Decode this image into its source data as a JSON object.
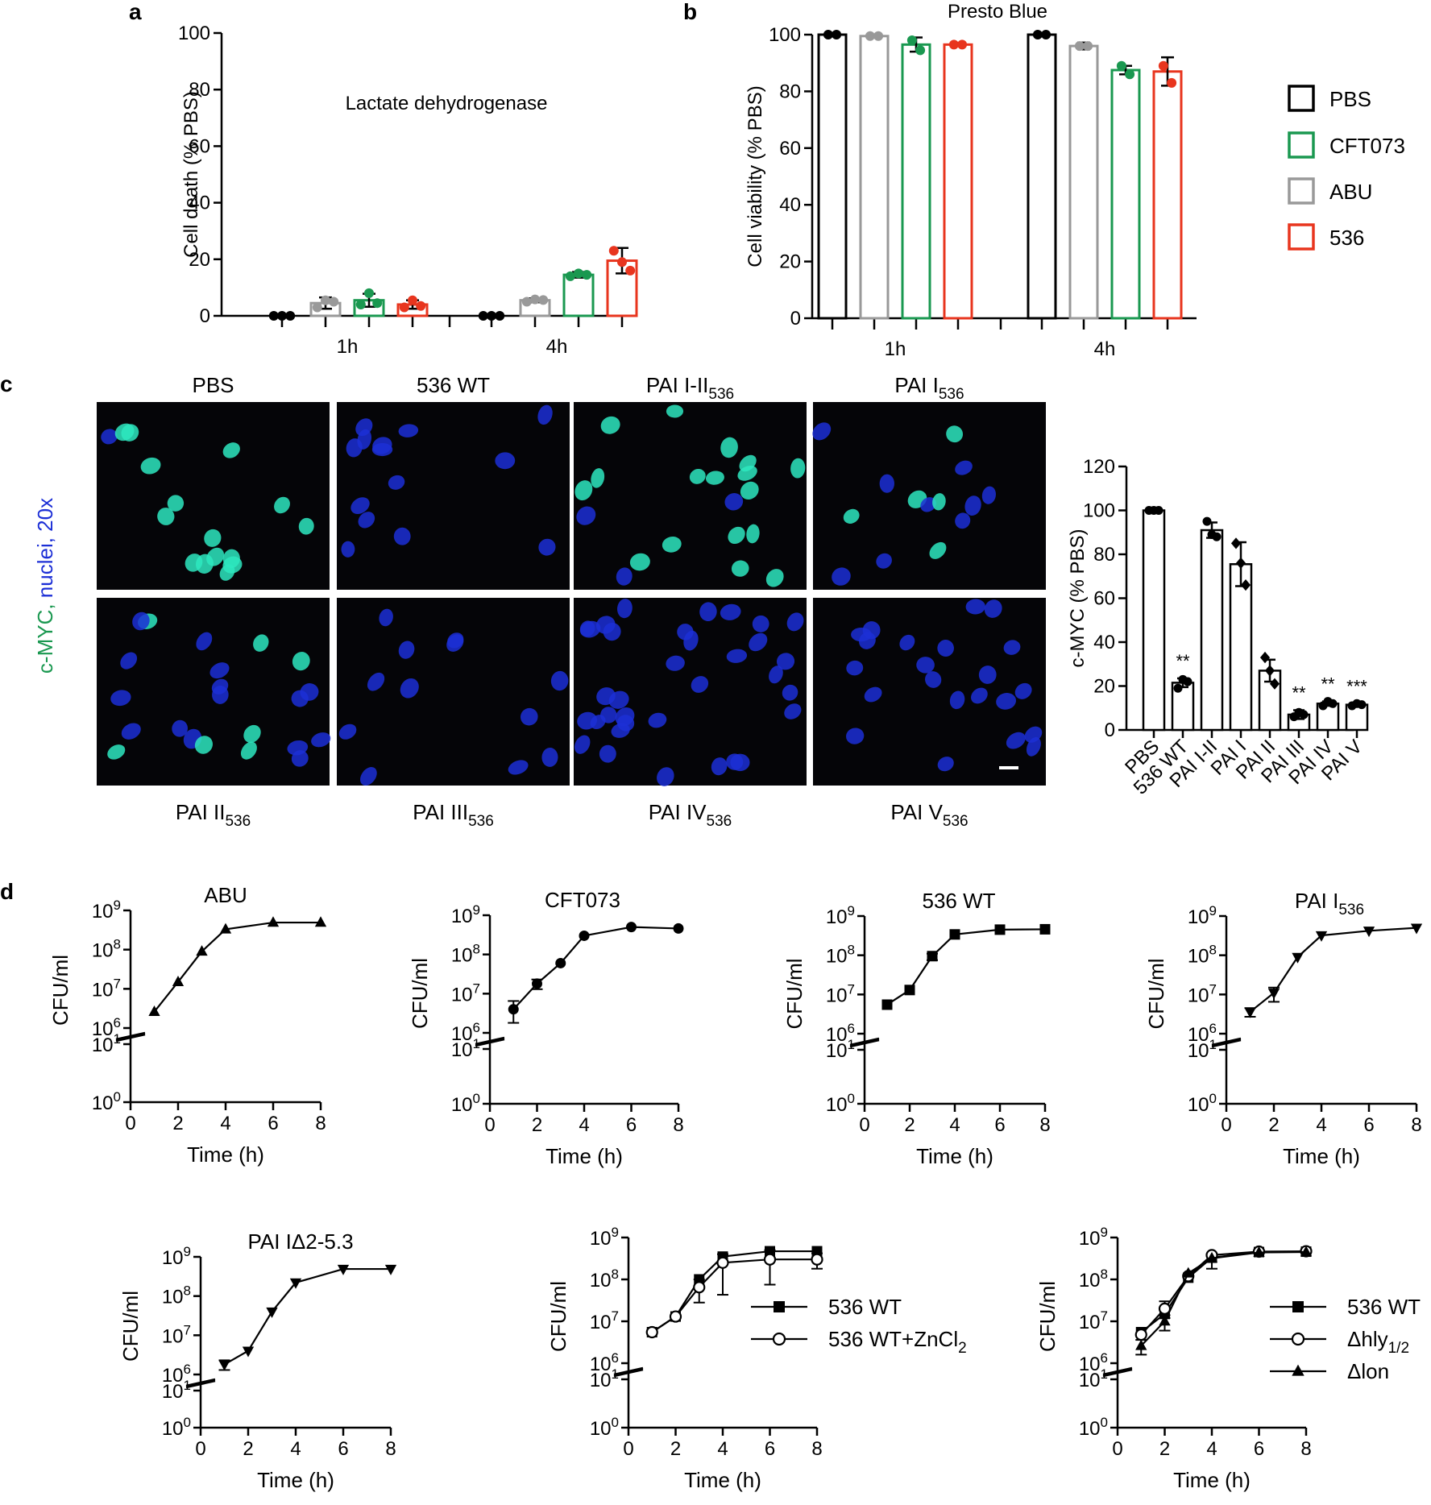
{
  "colors": {
    "pbs": "#000000",
    "cft073": "#1a9850",
    "abu": "#999999",
    "s536": "#e8351e",
    "nuclei": "#1c2fd6",
    "cmyc": "#2ee8c0",
    "panel_bg": "#050508"
  },
  "panel_letters": {
    "a": "a",
    "b": "b",
    "c": "c",
    "d": "d"
  },
  "legend_ab": [
    {
      "label": "PBS",
      "color": "#000000"
    },
    {
      "label": "CFT073",
      "color": "#1a9850"
    },
    {
      "label": "ABU",
      "color": "#999999"
    },
    {
      "label": "536",
      "color": "#e8351e"
    }
  ],
  "micro": {
    "side_label": {
      "green": "c-MYC, ",
      "blue": "nuclei, 20x"
    },
    "top": [
      {
        "base": "PBS",
        "sub": ""
      },
      {
        "base": "536 WT",
        "sub": ""
      },
      {
        "base": "PAI I-II",
        "sub": "536"
      },
      {
        "base": "PAI I",
        "sub": "536"
      }
    ],
    "bottom": [
      {
        "base": "PAI II",
        "sub": "536"
      },
      {
        "base": "PAI III",
        "sub": "536"
      },
      {
        "base": "PAI IV",
        "sub": "536"
      },
      {
        "base": "PAI V",
        "sub": "536"
      }
    ]
  },
  "chart_data": [
    {
      "id": "a",
      "type": "bar",
      "title": "Lactate dehydrogenase",
      "ylabel": "Cell death (% PBS)",
      "ylim": [
        0,
        100
      ],
      "yticks": [
        "0",
        "20",
        "40",
        "60",
        "80",
        "100"
      ],
      "groups": [
        "1h",
        "4h"
      ],
      "series": [
        {
          "name": "PBS",
          "color": "#000000",
          "values": [
            0,
            0
          ],
          "points": [
            [
              0,
              0,
              0
            ],
            [
              0,
              0,
              0
            ]
          ]
        },
        {
          "name": "ABU",
          "color": "#999999",
          "values": [
            4.5,
            5.5
          ],
          "err": [
            2,
            0.7
          ],
          "points": [
            [
              3,
              5.5,
              5
            ],
            [
              5,
              5.8,
              5.6
            ]
          ]
        },
        {
          "name": "CFT073",
          "color": "#1a9850",
          "values": [
            5.5,
            14.5
          ],
          "err": [
            2.3,
            1
          ],
          "points": [
            [
              4,
              8,
              4.5
            ],
            [
              14,
              15,
              14.5
            ]
          ]
        },
        {
          "name": "536",
          "color": "#e8351e",
          "values": [
            4,
            19.5
          ],
          "err": [
            1.5,
            4.5
          ],
          "points": [
            [
              3,
              5.5,
              3.5
            ],
            [
              23,
              19,
              16
            ]
          ]
        }
      ]
    },
    {
      "id": "b",
      "type": "bar",
      "title": "Presto Blue",
      "ylabel": "Cell viability (% PBS)",
      "ylim": [
        0,
        100
      ],
      "yticks": [
        "0",
        "20",
        "40",
        "60",
        "80",
        "100"
      ],
      "groups": [
        "1h",
        "4h"
      ],
      "series": [
        {
          "name": "PBS",
          "color": "#000000",
          "values": [
            100,
            100
          ],
          "points": [
            [
              100,
              100
            ],
            [
              100,
              100
            ]
          ]
        },
        {
          "name": "ABU",
          "color": "#999999",
          "values": [
            99.5,
            96
          ],
          "err": [
            0.2,
            1.2
          ],
          "points": [
            [
              99.5,
              99.5
            ],
            [
              96,
              96
            ]
          ]
        },
        {
          "name": "CFT073",
          "color": "#1a9850",
          "values": [
            96.5,
            87.5
          ],
          "err": [
            2.5,
            1.5
          ],
          "points": [
            [
              98,
              94.5
            ],
            [
              89,
              86
            ]
          ]
        },
        {
          "name": "536",
          "color": "#e8351e",
          "values": [
            96.5,
            87
          ],
          "err": [
            0.3,
            5
          ],
          "points": [
            [
              96.5,
              96.5
            ],
            [
              89,
              83
            ]
          ]
        }
      ]
    },
    {
      "id": "c",
      "type": "bar",
      "ylabel": "c-MYC (% PBS)",
      "ylim": [
        0,
        120
      ],
      "yticks": [
        "0",
        "20",
        "40",
        "60",
        "80",
        "100",
        "120"
      ],
      "categories": [
        "PBS",
        "536 WT",
        "PAI I-II",
        "PAI I",
        "PAI II",
        "PAI III",
        "PAI IV",
        "PAI V"
      ],
      "markers": [
        "circle",
        "circle",
        "circle",
        "diamond",
        "diamond",
        "circle",
        "circle",
        "circle"
      ],
      "values": [
        100,
        21.5,
        91,
        75.5,
        27,
        7,
        12,
        11.5
      ],
      "err": [
        0,
        2,
        3.5,
        10,
        5,
        2,
        1,
        0.5
      ],
      "points": [
        [
          100,
          100,
          100
        ],
        [
          19,
          23,
          22
        ],
        [
          95,
          89,
          88
        ],
        [
          85,
          76,
          66
        ],
        [
          33,
          27,
          21
        ],
        [
          6,
          8,
          7
        ],
        [
          11,
          13,
          12
        ],
        [
          11,
          12,
          11.5
        ]
      ],
      "annotations": [
        "",
        "**",
        "",
        "",
        "",
        "**",
        "**",
        "***"
      ]
    },
    {
      "id": "d1",
      "type": "line",
      "title": "ABU",
      "sub": "",
      "ylabel": "CFU/ml",
      "xlabel": "Time (h)",
      "marker": "triangle-up",
      "x": [
        1,
        2,
        3,
        4,
        6,
        8
      ],
      "y": [
        2600000.0,
        15000000.0,
        90000000.0,
        330000000.0,
        490000000.0,
        490000000.0
      ]
    },
    {
      "id": "d2",
      "type": "line",
      "title": "CFT073",
      "sub": "",
      "ylabel": "CFU/ml",
      "xlabel": "Time (h)",
      "marker": "circle",
      "x": [
        1,
        2,
        3,
        4,
        6,
        8
      ],
      "y": [
        4000000.0,
        18000000.0,
        60000000.0,
        300000000.0,
        500000000.0,
        460000000.0
      ],
      "err_lo": [
        1800000.0,
        13000000.0,
        60000000.0,
        300000000.0,
        500000000.0,
        460000000.0
      ],
      "err_hi": [
        6500000.0,
        23000000.0,
        60000000.0,
        300000000.0,
        500000000.0,
        460000000.0
      ]
    },
    {
      "id": "d3",
      "type": "line",
      "title": "536 WT",
      "sub": "",
      "ylabel": "CFU/ml",
      "xlabel": "Time (h)",
      "marker": "square",
      "x": [
        1,
        2,
        3,
        4,
        6,
        8
      ],
      "y": [
        5500000.0,
        13000000.0,
        95000000.0,
        340000000.0,
        450000000.0,
        460000000.0
      ],
      "err_lo": [
        5500000.0,
        13000000.0,
        75000000.0,
        340000000.0,
        450000000.0,
        460000000.0
      ],
      "err_hi": [
        5500000.0,
        13000000.0,
        110000000.0,
        340000000.0,
        450000000.0,
        460000000.0
      ]
    },
    {
      "id": "d4",
      "type": "line",
      "title": "PAI I",
      "sub": "536",
      "ylabel": "CFU/ml",
      "xlabel": "Time (h)",
      "marker": "triangle-down",
      "x": [
        1,
        2,
        3,
        4,
        6,
        8
      ],
      "y": [
        3600000.0,
        11000000.0,
        90000000.0,
        320000000.0,
        420000000.0,
        500000000.0
      ],
      "err_lo": [
        2700000.0,
        6500000.0,
        90000000.0,
        320000000.0,
        420000000.0,
        500000000.0
      ],
      "err_hi": [
        4500000.0,
        15000000.0,
        90000000.0,
        320000000.0,
        420000000.0,
        500000000.0
      ]
    },
    {
      "id": "d5",
      "type": "line",
      "title": "PAI IΔ2-5.3",
      "sub": "",
      "ylabel": "CFU/ml",
      "xlabel": "Time (h)",
      "marker": "triangle-down",
      "x": [
        1,
        2,
        3,
        4,
        6,
        8
      ],
      "y": [
        1800000.0,
        4000000.0,
        40000000.0,
        220000000.0,
        490000000.0,
        490000000.0
      ],
      "err_lo": [
        1300000.0,
        4000000.0,
        40000000.0,
        220000000.0,
        490000000.0,
        490000000.0
      ],
      "err_hi": [
        2300000.0,
        4000000.0,
        40000000.0,
        220000000.0,
        490000000.0,
        490000000.0
      ]
    },
    {
      "id": "d6",
      "type": "line",
      "ylabel": "CFU/ml",
      "xlabel": "Time (h)",
      "legend": "right",
      "series": [
        {
          "name": "536 WT",
          "sub": "",
          "marker": "square",
          "x": [
            1,
            2,
            3,
            4,
            6,
            8
          ],
          "y": [
            5500000.0,
            13000000.0,
            100000000.0,
            350000000.0,
            470000000.0,
            470000000.0
          ]
        },
        {
          "name": "536 WT+ZnCl",
          "sub": "2",
          "marker": "circle-open",
          "x": [
            1,
            2,
            3,
            4,
            6,
            8
          ],
          "y": [
            5500000.0,
            13000000.0,
            65000000.0,
            250000000.0,
            300000000.0,
            300000000.0
          ],
          "err_lo": [
            5500000.0,
            13000000.0,
            28000000.0,
            43000000.0,
            75000000.0,
            180000000.0
          ],
          "err_hi": [
            5500000.0,
            13000000.0,
            100000000.0,
            400000000.0,
            500000000.0,
            420000000.0
          ]
        }
      ]
    },
    {
      "id": "d7",
      "type": "line",
      "ylabel": "CFU/ml",
      "xlabel": "Time (h)",
      "legend": "right",
      "series": [
        {
          "name": "536 WT",
          "sub": "",
          "marker": "square",
          "x": [
            1,
            2,
            3,
            4,
            6,
            8
          ],
          "y": [
            5500000.0,
            15000000.0,
            110000000.0,
            330000000.0,
            450000000.0,
            460000000.0
          ]
        },
        {
          "name": "Δhly",
          "sub": "1/2",
          "marker": "circle-open",
          "x": [
            1,
            2,
            3,
            4,
            6,
            8
          ],
          "y": [
            4800000.0,
            20000000.0,
            120000000.0,
            380000000.0,
            460000000.0,
            470000000.0
          ],
          "err_lo": [
            4800000.0,
            12000000.0,
            120000000.0,
            180000000.0,
            460000000.0,
            470000000.0
          ],
          "err_hi": [
            4800000.0,
            30000000.0,
            120000000.0,
            380000000.0,
            460000000.0,
            470000000.0
          ]
        },
        {
          "name": "Δlon",
          "sub": "",
          "marker": "triangle-up",
          "x": [
            1,
            2,
            3,
            4,
            6,
            8
          ],
          "y": [
            2600000.0,
            10000000.0,
            140000000.0,
            320000000.0,
            440000000.0,
            450000000.0
          ],
          "err_lo": [
            1600000.0,
            6000000.0,
            140000000.0,
            320000000.0,
            440000000.0,
            450000000.0
          ],
          "err_hi": [
            3600000.0,
            14000000.0,
            140000000.0,
            320000000.0,
            440000000.0,
            450000000.0
          ]
        }
      ]
    }
  ],
  "log_axis": {
    "ticks": [
      {
        "base": "10",
        "exp": "9"
      },
      {
        "base": "10",
        "exp": "8"
      },
      {
        "base": "10",
        "exp": "7"
      },
      {
        "base": "10",
        "exp": "6"
      },
      {
        "base": "10",
        "exp": "1"
      },
      {
        "base": "10",
        "exp": "0"
      }
    ],
    "xticks": [
      "0",
      "2",
      "4",
      "6",
      "8"
    ]
  }
}
